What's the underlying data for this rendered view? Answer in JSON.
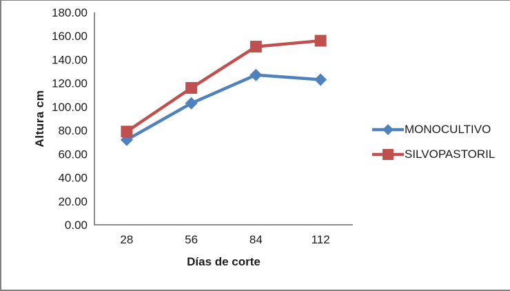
{
  "page": {
    "background": "#ffffff",
    "border_color": "#808080"
  },
  "chart_data": {
    "type": "line",
    "title": "",
    "xlabel": "Días de corte",
    "ylabel": "Altura cm",
    "categories": [
      "28",
      "56",
      "84",
      "112"
    ],
    "series": [
      {
        "name": "MONOCULTIVO",
        "values": [
          72,
          103,
          127,
          123
        ],
        "color": "#4F81BD",
        "marker": "diamond"
      },
      {
        "name": "SILVOPASTORIL",
        "values": [
          79,
          116,
          151,
          156
        ],
        "color": "#C0504D",
        "marker": "square"
      }
    ],
    "ylim": [
      0,
      180
    ],
    "ytick_step": 20,
    "ytick_labels": [
      "0.00",
      "20.00",
      "40.00",
      "60.00",
      "80.00",
      "100.00",
      "120.00",
      "140.00",
      "160.00",
      "180.00"
    ],
    "grid": false,
    "legend_position": "right",
    "axis_color": "#8C8C8C",
    "text_color": "#1a1a1a"
  }
}
